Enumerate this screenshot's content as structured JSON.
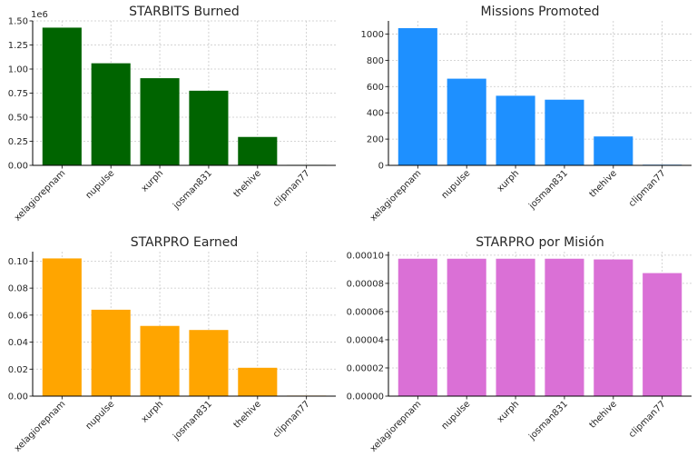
{
  "chart_data": [
    {
      "type": "bar",
      "title": "STARBITS Burned",
      "categories": [
        "xelagiorepnam",
        "nupulse",
        "xurph",
        "josman831",
        "thehive",
        "clipman77"
      ],
      "values": [
        1430000,
        1060000,
        905000,
        775000,
        295000,
        5000
      ],
      "ylim": [
        0,
        1500000
      ],
      "yticks": [
        0,
        250000,
        500000,
        750000,
        1000000,
        1250000,
        1500000
      ],
      "ytick_labels": [
        "0.00",
        "0.25",
        "0.50",
        "0.75",
        "1.00",
        "1.25",
        "1.50"
      ],
      "offset_text": "1e6",
      "xlabel": "",
      "ylabel": "",
      "color": "#006400",
      "grid": true
    },
    {
      "type": "bar",
      "title": "Missions Promoted",
      "categories": [
        "xelagiorepnam",
        "nupulse",
        "xurph",
        "josman831",
        "thehive",
        "clipman77"
      ],
      "values": [
        1045,
        660,
        530,
        500,
        220,
        5
      ],
      "ylim": [
        0,
        1100
      ],
      "yticks": [
        0,
        200,
        400,
        600,
        800,
        1000
      ],
      "ytick_labels": [
        "0",
        "200",
        "400",
        "600",
        "800",
        "1000"
      ],
      "offset_text": "",
      "xlabel": "",
      "ylabel": "",
      "color": "#1e90ff",
      "grid": true
    },
    {
      "type": "bar",
      "title": "STARPRO Earned",
      "categories": [
        "xelagiorepnam",
        "nupulse",
        "xurph",
        "josman831",
        "thehive",
        "clipman77"
      ],
      "values": [
        0.102,
        0.064,
        0.052,
        0.049,
        0.021,
        0.0004
      ],
      "ylim": [
        0,
        0.107
      ],
      "yticks": [
        0,
        0.02,
        0.04,
        0.06,
        0.08,
        0.1
      ],
      "ytick_labels": [
        "0.00",
        "0.02",
        "0.04",
        "0.06",
        "0.08",
        "0.10"
      ],
      "offset_text": "",
      "xlabel": "",
      "ylabel": "",
      "color": "#ffa500",
      "grid": true
    },
    {
      "type": "bar",
      "title": "STARPRO por Misión",
      "categories": [
        "xelagiorepnam",
        "nupulse",
        "xurph",
        "josman831",
        "thehive",
        "clipman77"
      ],
      "values": [
        9.75e-05,
        9.75e-05,
        9.75e-05,
        9.75e-05,
        9.7e-05,
        8.73e-05
      ],
      "ylim": [
        0,
        0.0001025
      ],
      "yticks": [
        0,
        2e-05,
        4e-05,
        6e-05,
        8e-05,
        0.0001
      ],
      "ytick_labels": [
        "0.00000",
        "0.00002",
        "0.00004",
        "0.00006",
        "0.00008",
        "0.00010"
      ],
      "offset_text": "",
      "xlabel": "",
      "ylabel": "",
      "color": "#da70d6",
      "grid": true
    }
  ]
}
